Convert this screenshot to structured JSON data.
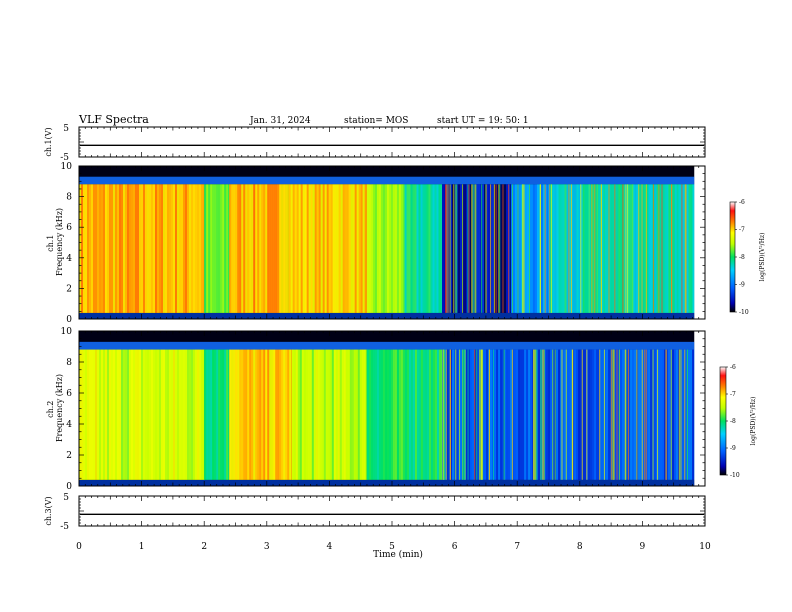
{
  "header": {
    "title": "VLF Spectra",
    "date": "Jan. 31, 2024",
    "station": "station= MOS",
    "start": "start UT =  19: 50: 1"
  },
  "chart_data": [
    {
      "type": "line",
      "name": "ch1-voltage",
      "ylabel": "ch.1(V)",
      "ylim": [
        -5,
        5
      ],
      "yticks": [
        "5",
        "-5"
      ],
      "x": [
        0,
        10
      ],
      "y": [
        -1.1,
        -1.1
      ]
    },
    {
      "type": "heatmap",
      "name": "ch1-spectrogram",
      "ylabel": "ch.1\nFrequency (kHz)",
      "ylim": [
        0,
        10
      ],
      "yticks": [
        "0",
        "2",
        "4",
        "6",
        "8",
        "10"
      ],
      "xlim": [
        0,
        9.83
      ],
      "colorbar": {
        "label": "log(PSD)(V²/Hz)",
        "range": [
          -10,
          -6
        ],
        "ticks": [
          "-6",
          "-7",
          "-8",
          "-9",
          "-10"
        ]
      },
      "band_khz": [
        0.4,
        8.8
      ],
      "segments": [
        {
          "x": [
            0.0,
            2.0
          ],
          "log_psd": -6.9
        },
        {
          "x": [
            2.0,
            2.4
          ],
          "log_psd": -7.8
        },
        {
          "x": [
            2.4,
            3.35
          ],
          "log_psd": -6.9
        },
        {
          "x": [
            3.35,
            4.6
          ],
          "log_psd": -7.0
        },
        {
          "x": [
            4.6,
            5.2
          ],
          "log_psd": -7.6
        },
        {
          "x": [
            5.2,
            5.8
          ],
          "log_psd": -8.2
        },
        {
          "x": [
            5.8,
            6.9
          ],
          "log_psd": -9.6
        },
        {
          "x": [
            6.9,
            7.5
          ],
          "log_psd": -8.8
        },
        {
          "x": [
            7.5,
            9.83
          ],
          "log_psd": -8.3
        }
      ]
    },
    {
      "type": "heatmap",
      "name": "ch2-spectrogram",
      "ylabel": "ch.2\nFrequency (kHz)",
      "ylim": [
        0,
        10
      ],
      "yticks": [
        "0",
        "2",
        "4",
        "6",
        "8",
        "10"
      ],
      "xlim": [
        0,
        9.83
      ],
      "colorbar": {
        "label": "log(PSD)(V²/Hz)",
        "range": [
          -10,
          -6
        ],
        "ticks": [
          "-6",
          "-7",
          "-8",
          "-9",
          "-10"
        ]
      },
      "band_khz": [
        0.4,
        8.8
      ],
      "segments": [
        {
          "x": [
            0.0,
            2.0
          ],
          "log_psd": -7.4
        },
        {
          "x": [
            2.0,
            2.4
          ],
          "log_psd": -8.0
        },
        {
          "x": [
            2.4,
            3.4
          ],
          "log_psd": -7.0
        },
        {
          "x": [
            3.4,
            4.6
          ],
          "log_psd": -7.5
        },
        {
          "x": [
            4.6,
            5.8
          ],
          "log_psd": -8.0
        },
        {
          "x": [
            5.8,
            9.83
          ],
          "log_psd": -9.2
        }
      ]
    },
    {
      "type": "line",
      "name": "ch3-voltage",
      "ylabel": "ch.3(V)",
      "ylim": [
        -5,
        5
      ],
      "yticks": [
        "5",
        "-5"
      ],
      "x": [
        0,
        10
      ],
      "y": [
        -1.1,
        -1.1
      ]
    }
  ],
  "x_axis": {
    "label": "Time (min)",
    "range": [
      0,
      10
    ],
    "ticks": [
      "0",
      "1",
      "2",
      "3",
      "4",
      "5",
      "6",
      "7",
      "8",
      "9",
      "10"
    ]
  }
}
